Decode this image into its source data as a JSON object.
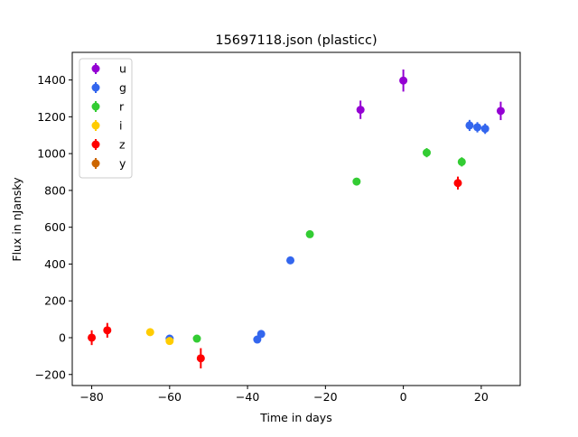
{
  "chart_data": {
    "type": "scatter",
    "title": "15697118.json (plasticc)",
    "xlabel": "Time in days",
    "ylabel": "Flux in nJansky",
    "xlim": [
      -85,
      30
    ],
    "ylim": [
      -260,
      1550
    ],
    "xticks": [
      -80,
      -60,
      -40,
      -20,
      0,
      20
    ],
    "yticks": [
      -200,
      0,
      200,
      400,
      600,
      800,
      1000,
      1200,
      1400
    ],
    "grid": false,
    "legend_position": "top-left",
    "series": [
      {
        "name": "u",
        "color": "#9400d3",
        "points": [
          {
            "x": -11,
            "y": 1238,
            "err": 50
          },
          {
            "x": 0,
            "y": 1397,
            "err": 60
          },
          {
            "x": 25,
            "y": 1232,
            "err": 50
          }
        ]
      },
      {
        "name": "g",
        "color": "#3366ee",
        "points": [
          {
            "x": -60,
            "y": -5,
            "err": 12
          },
          {
            "x": -37.5,
            "y": -10,
            "err": 12
          },
          {
            "x": -36.5,
            "y": 20,
            "err": 15
          },
          {
            "x": -29,
            "y": 420,
            "err": 10
          },
          {
            "x": 17,
            "y": 1153,
            "err": 30
          },
          {
            "x": 19,
            "y": 1143,
            "err": 28
          },
          {
            "x": 21,
            "y": 1135,
            "err": 28
          }
        ]
      },
      {
        "name": "r",
        "color": "#33cc33",
        "points": [
          {
            "x": -53,
            "y": -5,
            "err": 10
          },
          {
            "x": -24,
            "y": 562,
            "err": 12
          },
          {
            "x": -12,
            "y": 848,
            "err": 12
          },
          {
            "x": 6,
            "y": 1005,
            "err": 25
          },
          {
            "x": 15,
            "y": 955,
            "err": 25
          }
        ]
      },
      {
        "name": "i",
        "color": "#ffcc00",
        "points": [
          {
            "x": -65,
            "y": 30,
            "err": 12
          },
          {
            "x": -60,
            "y": -18,
            "err": 12
          }
        ]
      },
      {
        "name": "z",
        "color": "#ff0000",
        "points": [
          {
            "x": -80,
            "y": 0,
            "err": 40
          },
          {
            "x": -76,
            "y": 40,
            "err": 40
          },
          {
            "x": -52,
            "y": -112,
            "err": 55
          },
          {
            "x": 14,
            "y": 840,
            "err": 35
          }
        ]
      },
      {
        "name": "y",
        "color": "#cc6600",
        "points": []
      }
    ]
  }
}
